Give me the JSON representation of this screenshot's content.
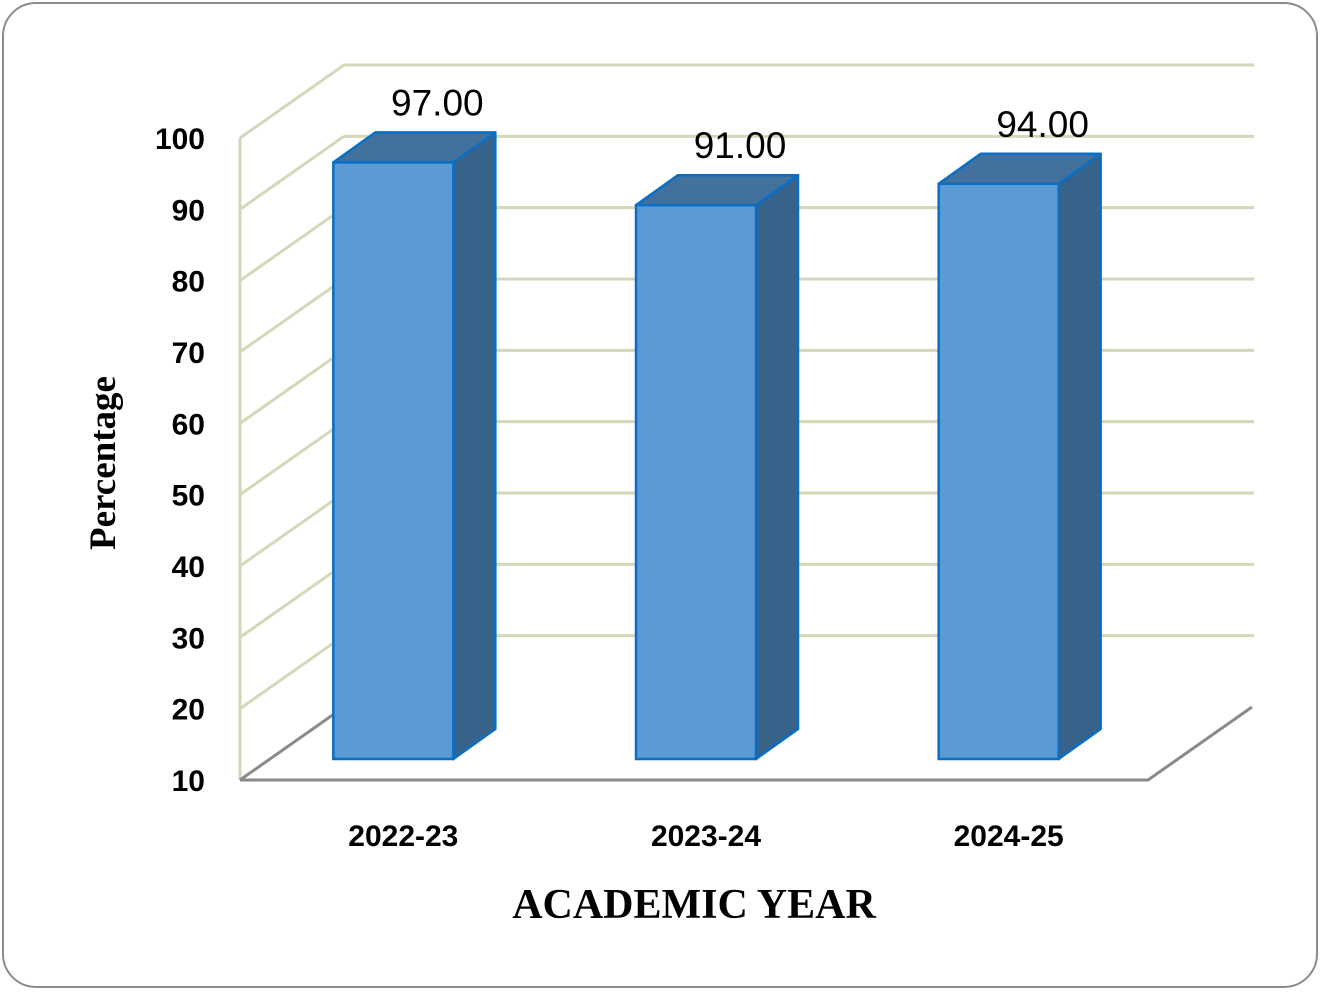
{
  "chart_data": {
    "type": "bar",
    "categories": [
      "2022-23",
      "2023-24",
      "2024-25"
    ],
    "values": [
      97.0,
      91.0,
      94.0
    ],
    "data_labels": [
      "97.00",
      "91.00",
      "94.00"
    ],
    "xlabel": "ACADEMIC YEAR",
    "ylabel": "Percentage",
    "ylim": [
      10,
      100
    ],
    "yticks": [
      "10",
      "20",
      "30",
      "40",
      "50",
      "60",
      "70",
      "80",
      "90",
      "100"
    ],
    "grid": true,
    "three_d": true
  },
  "colors": {
    "bar_front": "#5b9bd5",
    "bar_top": "#41719c",
    "bar_side": "#37628a",
    "bar_stroke": "#0a6fc4",
    "grid": "#d6d6b8",
    "axis": "#8a8a8a"
  }
}
